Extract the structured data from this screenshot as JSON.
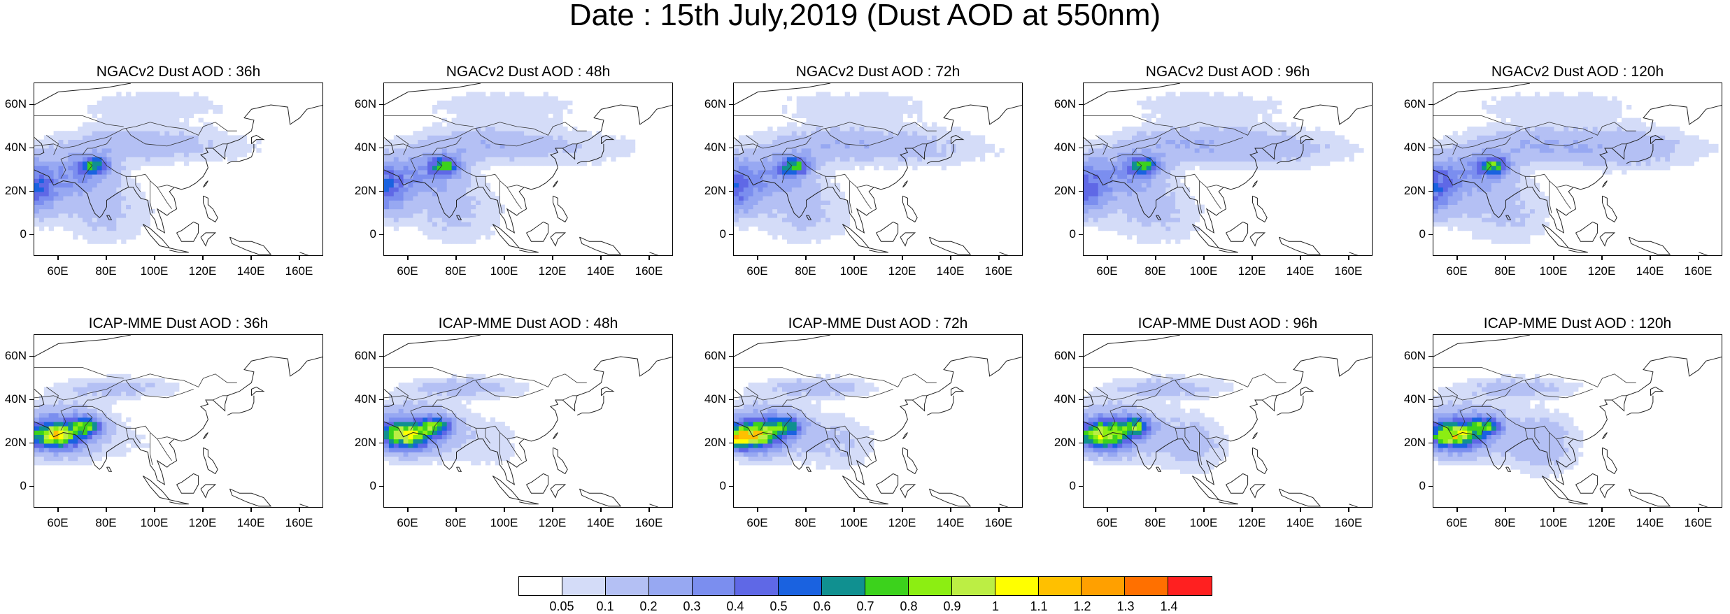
{
  "title": "Date : 15th July,2019 (Dust AOD at 550nm)",
  "panels": [
    {
      "title": "NGACv2 Dust AOD : 36h"
    },
    {
      "title": "NGACv2 Dust AOD : 48h"
    },
    {
      "title": "NGACv2 Dust AOD : 72h"
    },
    {
      "title": "NGACv2 Dust AOD : 96h"
    },
    {
      "title": "NGACv2 Dust AOD : 120h"
    },
    {
      "title": "ICAP-MME Dust AOD : 36h"
    },
    {
      "title": "ICAP-MME Dust AOD : 48h"
    },
    {
      "title": "ICAP-MME Dust AOD : 72h"
    },
    {
      "title": "ICAP-MME Dust AOD : 96h"
    },
    {
      "title": "ICAP-MME Dust AOD : 120h"
    }
  ],
  "chart_data": {
    "type": "heatmap",
    "title": "Date : 15th July,2019 (Dust AOD at 550nm)",
    "xlim": [
      50,
      170
    ],
    "ylim": [
      -10,
      70
    ],
    "x_ticks": [
      "60E",
      "80E",
      "100E",
      "120E",
      "140E",
      "160E"
    ],
    "x_tick_values": [
      60,
      80,
      100,
      120,
      140,
      160
    ],
    "y_ticks": [
      "60N",
      "40N",
      "20N",
      "0"
    ],
    "y_tick_values": [
      60,
      40,
      20,
      0
    ],
    "panel_titles": [
      "NGACv2 Dust AOD : 36h",
      "NGACv2 Dust AOD : 48h",
      "NGACv2 Dust AOD : 72h",
      "NGACv2 Dust AOD : 96h",
      "NGACv2 Dust AOD : 120h",
      "ICAP-MME Dust AOD : 36h",
      "ICAP-MME Dust AOD : 48h",
      "ICAP-MME Dust AOD : 72h",
      "ICAP-MME Dust AOD : 96h",
      "ICAP-MME Dust AOD : 120h"
    ],
    "colorbar": {
      "labels": [
        "0.05",
        "0.1",
        "0.2",
        "0.3",
        "0.4",
        "0.5",
        "0.6",
        "0.7",
        "0.8",
        "0.9",
        "1",
        "1.1",
        "1.2",
        "1.3",
        "1.4"
      ],
      "colors": [
        "#ffffff",
        "#d4dcf8",
        "#b4c0f4",
        "#97a8f2",
        "#7b8eef",
        "#5f68e6",
        "#1a62e0",
        "#109090",
        "#3cd21c",
        "#8cee12",
        "#bcee44",
        "#ffff00",
        "#ffc000",
        "#ffa000",
        "#ff7000",
        "#ff2020"
      ]
    }
  }
}
